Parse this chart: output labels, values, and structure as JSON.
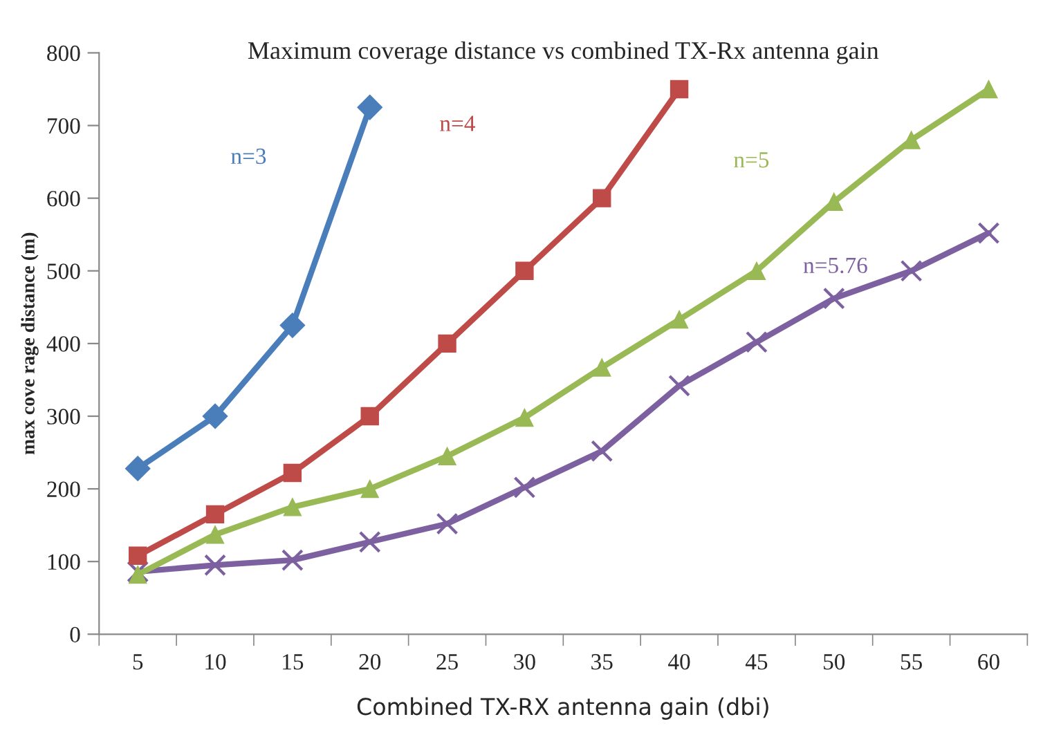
{
  "chart_data": {
    "type": "line",
    "title": "Maximum coverage distance vs combined TX-Rx antenna gain",
    "xlabel": "Combined TX-RX antenna gain (dbi)",
    "ylabel": "max cove rage distance (m)",
    "categories": [
      "5",
      "10",
      "15",
      "20",
      "25",
      "30",
      "35",
      "40",
      "45",
      "50",
      "55",
      "60"
    ],
    "series": [
      {
        "name": "n=3",
        "color": "#4a7ebb",
        "marker": "diamond",
        "values": [
          228,
          300,
          425,
          725,
          null,
          null,
          null,
          null,
          null,
          null,
          null,
          null
        ]
      },
      {
        "name": "n=4",
        "color": "#be4b48",
        "marker": "square",
        "values": [
          108,
          165,
          222,
          300,
          400,
          500,
          600,
          750,
          null,
          null,
          null,
          null
        ]
      },
      {
        "name": "n=5",
        "color": "#98b954",
        "marker": "triangle",
        "values": [
          82,
          137,
          175,
          200,
          245,
          298,
          367,
          433,
          500,
          595,
          680,
          750
        ]
      },
      {
        "name": "n=5.76",
        "color": "#7d60a0",
        "marker": "cross",
        "values": [
          86,
          95,
          102,
          127,
          152,
          202,
          252,
          342,
          402,
          462,
          500,
          552
        ]
      }
    ],
    "ylim": [
      0,
      800
    ],
    "yticks": [
      0,
      100,
      200,
      300,
      400,
      500,
      600,
      700,
      800
    ],
    "grid": false,
    "legend": false,
    "line_style": "solid"
  }
}
